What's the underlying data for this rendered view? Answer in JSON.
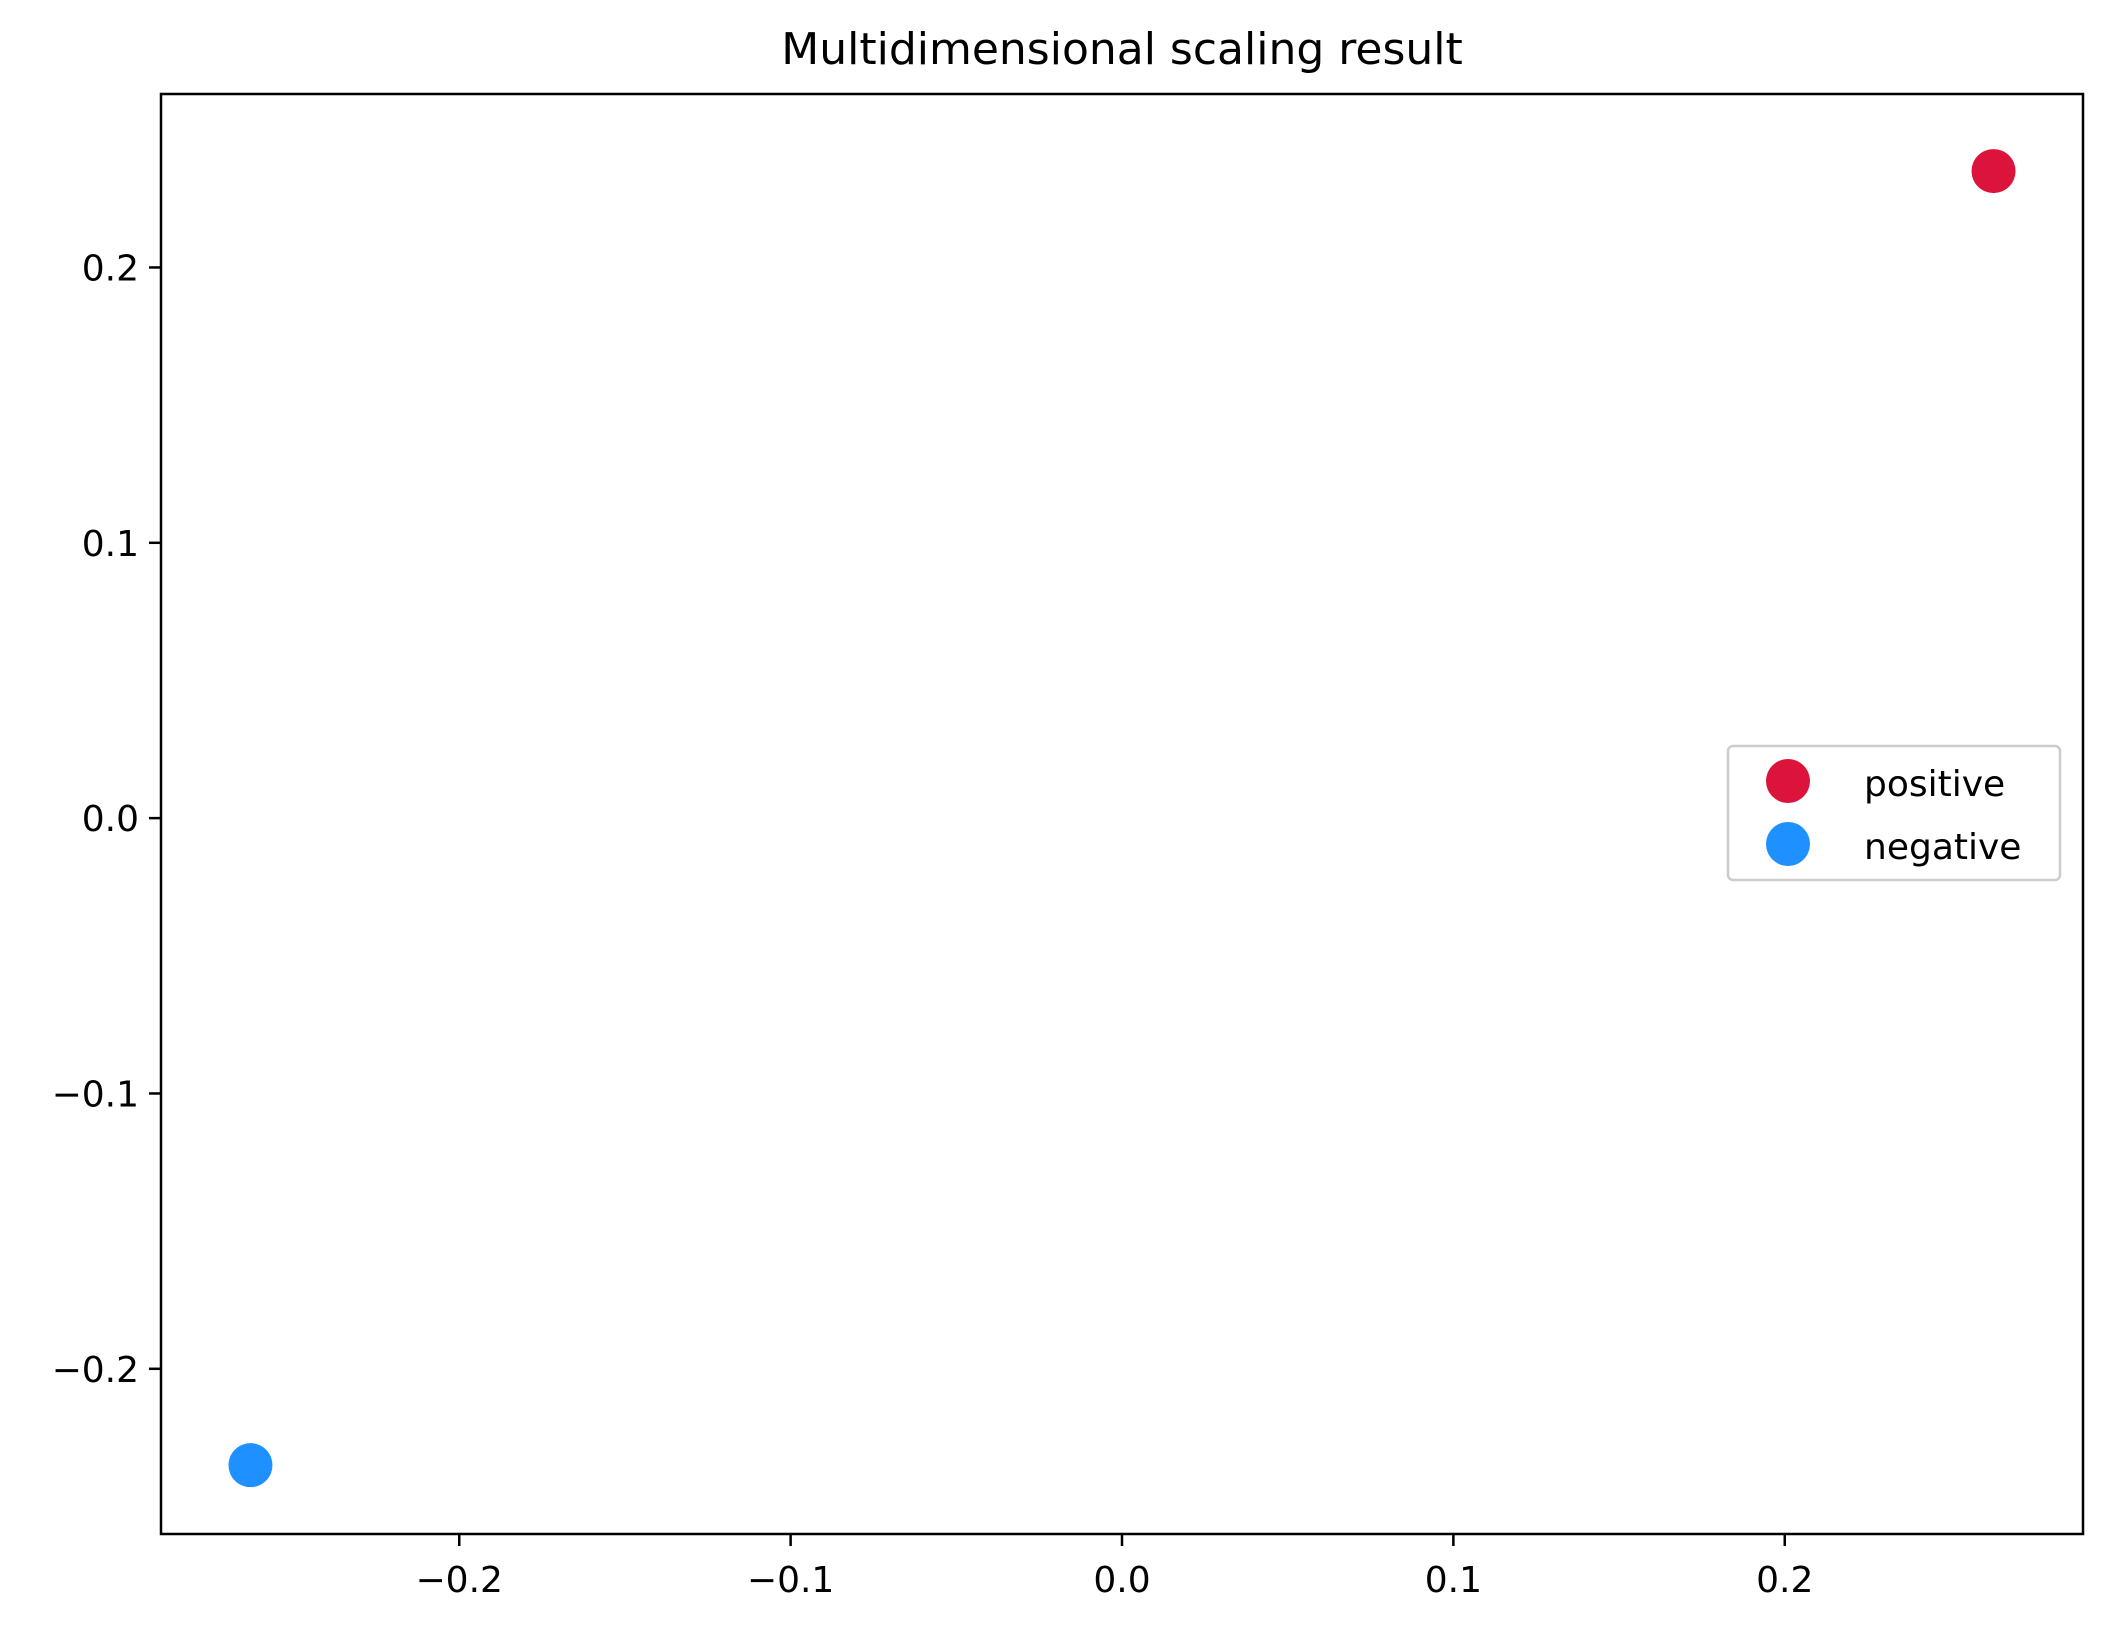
{
  "chart_data": {
    "type": "scatter",
    "title": "Multidimensional scaling result",
    "xlabel": "",
    "ylabel": "",
    "xlim": [
      -0.29,
      0.29
    ],
    "ylim": [
      -0.26,
      0.263
    ],
    "xticks": [
      -0.2,
      -0.1,
      0.0,
      0.1,
      0.2
    ],
    "xtick_labels": [
      "−0.2",
      "−0.1",
      "0.0",
      "0.1",
      "0.2"
    ],
    "yticks": [
      -0.2,
      -0.1,
      0.0,
      0.1,
      0.2
    ],
    "ytick_labels": [
      "−0.2",
      "−0.1",
      "0.0",
      "0.1",
      "0.2"
    ],
    "grid": false,
    "legend_position": "center-right",
    "series": [
      {
        "name": "positive",
        "color": "#dc143c",
        "points": [
          {
            "x": 0.263,
            "y": 0.235
          }
        ]
      },
      {
        "name": "negative",
        "color": "#1e90ff",
        "points": [
          {
            "x": -0.263,
            "y": -0.235
          }
        ]
      }
    ]
  }
}
